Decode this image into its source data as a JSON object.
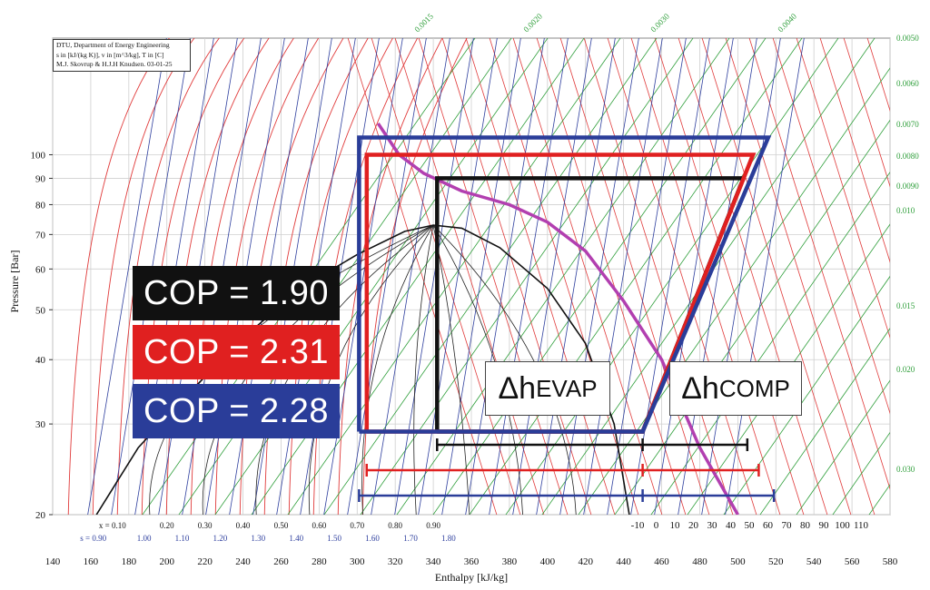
{
  "chart_data": {
    "type": "line",
    "title": "",
    "xlabel": "Enthalpy [kJ/kg]",
    "ylabel": "Pressure [Bar]",
    "xlim": [
      140,
      580
    ],
    "ylim": [
      20,
      110
    ],
    "y_scale": "log",
    "x_ticks": [
      140,
      160,
      180,
      200,
      220,
      240,
      260,
      280,
      300,
      320,
      340,
      360,
      380,
      400,
      420,
      440,
      460,
      480,
      500,
      520,
      540,
      560,
      580
    ],
    "y_ticks": [
      20,
      30,
      40,
      50,
      60,
      70,
      80,
      90,
      100
    ],
    "quality_labels": [
      "x = 0.10",
      "0.20",
      "0.30",
      "0.40",
      "0.50",
      "0.60",
      "0.70",
      "0.80",
      "0.90"
    ],
    "entropy_labels": [
      "s = 0.90",
      "1.00",
      "1.10",
      "1.20",
      "1.30",
      "1.40",
      "1.50",
      "1.60",
      "1.70",
      "1.80"
    ],
    "temperature_axis_labels": [
      "-10",
      "0",
      "10",
      "20",
      "30",
      "40",
      "50",
      "60",
      "70",
      "80",
      "90",
      "100",
      "110"
    ],
    "volume_labels": [
      "0.0050",
      "0.0060",
      "0.0070",
      "0.0080",
      "0.0090",
      "0.010",
      "0.015",
      "0.020",
      "0.030"
    ],
    "top_volume_labels": [
      "0.0015",
      "0.0020",
      "0.0030",
      "0.0040"
    ],
    "grid": true,
    "series": [
      {
        "name": "COP = 1.90",
        "color": "#111111",
        "x": [
          342,
          342,
          503,
          450,
          342
        ],
        "y": [
          29,
          90,
          90,
          29,
          29
        ]
      },
      {
        "name": "COP = 2.31",
        "color": "#e02020",
        "x": [
          305,
          305,
          508,
          450,
          305
        ],
        "y": [
          29,
          100,
          100,
          29,
          29
        ]
      },
      {
        "name": "COP = 2.28",
        "color": "#2a3d99",
        "x": [
          301,
          301,
          516,
          450,
          301
        ],
        "y": [
          29,
          108,
          108,
          29,
          29
        ]
      }
    ],
    "saturation_dome": {
      "x": [
        163,
        185,
        210,
        240,
        270,
        300,
        325,
        340,
        355,
        375,
        400,
        420,
        435,
        443
      ],
      "y": [
        20,
        27,
        34,
        44,
        55,
        64,
        71,
        73,
        72,
        66,
        55,
        43,
        30,
        20
      ]
    },
    "supercritical_isotherm": {
      "x": [
        311,
        322,
        335,
        355,
        380,
        400,
        420,
        440,
        460,
        480,
        500
      ],
      "y": [
        115,
        100,
        92,
        85,
        80,
        74,
        65,
        52,
        40,
        27,
        20
      ]
    },
    "enthalpy_brackets": [
      {
        "color": "#111111",
        "h_start": 342,
        "h_mid": 450,
        "h_end": 505
      },
      {
        "color": "#e02020",
        "h_start": 305,
        "h_mid": 450,
        "h_end": 511
      },
      {
        "color": "#2a3d99",
        "h_start": 301,
        "h_mid": 450,
        "h_end": 519
      }
    ],
    "annotations": [
      "Δh EVAP",
      "Δh COMP"
    ]
  },
  "info": {
    "line1": "DTU, Department of Energy Engineering",
    "line2": "s in [kJ/(kg K)], v in [m^3/kg], T in [C]",
    "line3": "M.J. Skovrup & H.J.H Knudsen. 03-01-25"
  },
  "legend": {
    "cop_black": "COP = 1.90",
    "cop_red": "COP = 2.31",
    "cop_blue": "COP = 2.28",
    "black_color": "#111111",
    "red_color": "#e02020",
    "blue_color": "#2a3d99"
  },
  "boxes": {
    "evap_delta": "Δh",
    "evap_sub": "EVAP",
    "comp_delta": "Δh",
    "comp_sub": "COMP"
  }
}
